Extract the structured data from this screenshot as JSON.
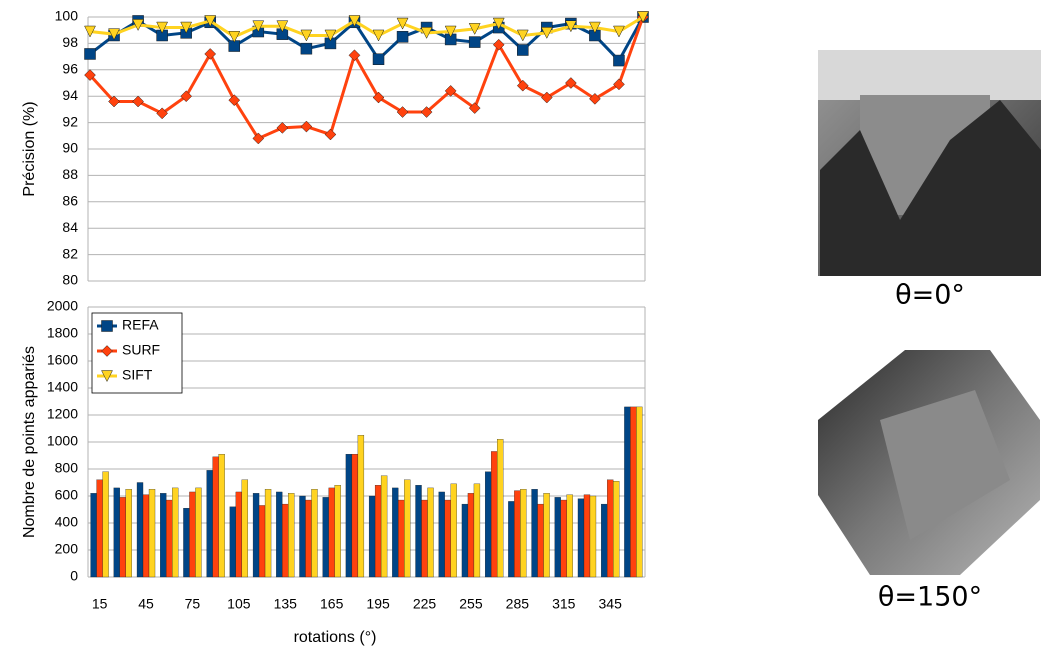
{
  "chart_data": [
    {
      "type": "line",
      "ylabel": "Précision (%)",
      "ylim": [
        80,
        100
      ],
      "yticks": [
        80,
        82,
        84,
        86,
        88,
        90,
        92,
        94,
        96,
        98,
        100
      ],
      "grid": true,
      "series": [
        {
          "color": "#004586",
          "marker": "square",
          "values": [
            97.2,
            98.6,
            99.7,
            98.6,
            98.8,
            99.6,
            97.8,
            98.9,
            98.7,
            97.6,
            98.0,
            99.6,
            96.8,
            98.5,
            99.2,
            98.3,
            98.1,
            99.2,
            97.5,
            99.2,
            99.5,
            98.6,
            96.7,
            100
          ]
        },
        {
          "color": "#ff420e",
          "marker": "diamond",
          "values": [
            95.6,
            93.6,
            93.6,
            92.7,
            94.0,
            97.2,
            93.7,
            90.8,
            91.6,
            91.7,
            91.1,
            97.1,
            93.9,
            92.8,
            92.8,
            94.4,
            93.1,
            97.9,
            94.8,
            93.9,
            95.0,
            93.8,
            94.9,
            100
          ]
        },
        {
          "color": "#ffd320",
          "marker": "triangle",
          "values": [
            98.9,
            98.7,
            99.4,
            99.2,
            99.2,
            99.7,
            98.5,
            99.3,
            99.3,
            98.6,
            98.6,
            99.7,
            98.6,
            99.5,
            98.8,
            98.9,
            99.1,
            99.5,
            98.6,
            98.8,
            99.3,
            99.2,
            98.9,
            100
          ]
        }
      ]
    },
    {
      "type": "bar",
      "ylabel": "Nombre de points appariés",
      "xlabel": "rotations (°)",
      "ylim": [
        0,
        2000
      ],
      "yticks": [
        0,
        200,
        400,
        600,
        800,
        1000,
        1200,
        1400,
        1600,
        1800,
        2000
      ],
      "grid": true,
      "legend": "upper left",
      "categories": [
        "15",
        null,
        "45",
        null,
        "75",
        null,
        "105",
        null,
        "135",
        null,
        "165",
        null,
        "195",
        null,
        "225",
        null,
        "255",
        null,
        "285",
        null,
        "315",
        null,
        "345",
        null
      ],
      "series": [
        {
          "name": "REFA",
          "color": "#004586",
          "marker": "square",
          "values": [
            620,
            660,
            700,
            620,
            510,
            790,
            520,
            620,
            630,
            600,
            590,
            910,
            600,
            660,
            680,
            630,
            540,
            780,
            560,
            650,
            590,
            580,
            540,
            1260
          ]
        },
        {
          "name": "SURF",
          "color": "#ff420e",
          "marker": "diamond",
          "values": [
            720,
            590,
            610,
            570,
            630,
            890,
            630,
            530,
            540,
            570,
            660,
            910,
            680,
            570,
            570,
            570,
            620,
            930,
            640,
            540,
            570,
            610,
            720,
            1260
          ]
        },
        {
          "name": "SIFT",
          "color": "#ffd320",
          "marker": "triangle",
          "values": [
            780,
            650,
            650,
            660,
            660,
            910,
            720,
            650,
            620,
            650,
            680,
            1050,
            750,
            720,
            660,
            690,
            690,
            1020,
            650,
            620,
            610,
            600,
            710,
            1260
          ]
        }
      ]
    }
  ],
  "images": [
    {
      "caption": "θ=0°"
    },
    {
      "caption": "θ=150°"
    }
  ]
}
